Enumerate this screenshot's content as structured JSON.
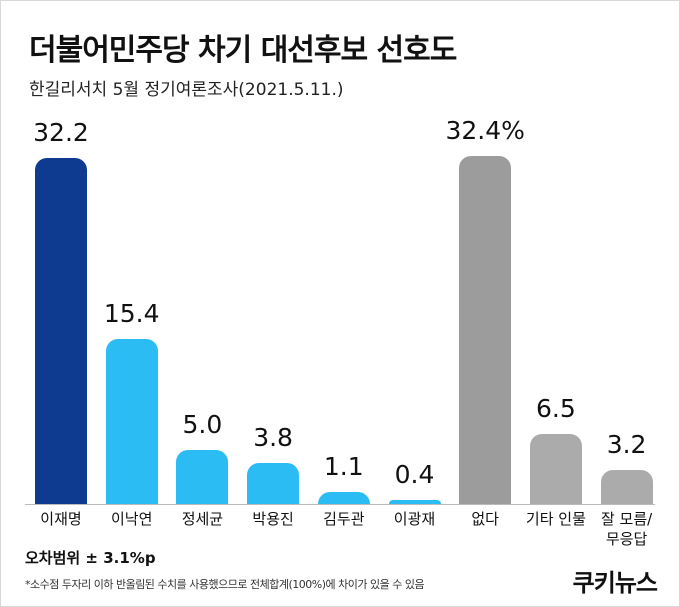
{
  "chart_data": {
    "type": "bar",
    "title": "더불어민주당 차기 대선후보 선호도",
    "subtitle": "한길리서치 5월 정기여론조사(2021.5.11.)",
    "categories": [
      "이재명",
      "이낙연",
      "정세균",
      "박용진",
      "김두관",
      "이광재",
      "없다",
      "기타 인물",
      "잘 모름/ 무응답"
    ],
    "values": [
      32.2,
      15.4,
      5.0,
      3.8,
      1.1,
      0.4,
      32.4,
      6.5,
      3.2
    ],
    "value_labels": [
      "32.2",
      "15.4",
      "5.0",
      "3.8",
      "1.1",
      "0.4",
      "32.4%",
      "6.5",
      "3.2"
    ],
    "colors": [
      "#0e3b8f",
      "#2cbcf4",
      "#2cbcf4",
      "#2cbcf4",
      "#2cbcf4",
      "#2cbcf4",
      "#9c9c9c",
      "#ababab",
      "#ababab"
    ],
    "annotations": [
      "오차범위 ± 3.1%p",
      "*소수점 두자리 이하 반올림된 수치를 사용했으므로 전체합계(100%)에 차이가 있을 수 있음"
    ],
    "source": "쿠키뉴스"
  }
}
